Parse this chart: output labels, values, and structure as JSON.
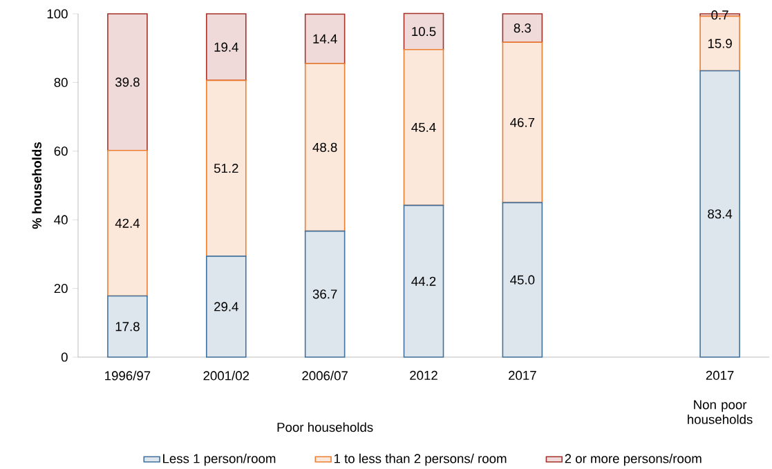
{
  "chart_data": {
    "type": "bar",
    "stacked": true,
    "ylabel": "% households",
    "categories": [
      "1996/97",
      "2001/02",
      "2006/07",
      "2012",
      "2017",
      null,
      "2017"
    ],
    "series": [
      {
        "name": "Less 1 person/room",
        "color": "#41719c",
        "values": [
          17.8,
          29.4,
          36.7,
          44.2,
          45.0,
          null,
          83.4
        ],
        "value_labels": [
          "17.8",
          "29.4",
          "36.7",
          "44.2",
          "45.0",
          null,
          "83.4"
        ]
      },
      {
        "name": "1 to less than 2 persons/ room",
        "color": "#ed7d31",
        "values": [
          42.4,
          51.2,
          48.8,
          45.4,
          46.7,
          null,
          15.9
        ],
        "value_labels": [
          "42.4",
          "51.2",
          "48.8",
          "45.4",
          "46.7",
          null,
          "15.9"
        ]
      },
      {
        "name": "2 or more persons/room",
        "color": "#a5312b",
        "values": [
          39.8,
          19.4,
          14.4,
          10.5,
          8.3,
          null,
          0.7
        ],
        "value_labels": [
          "39.8",
          "19.4",
          "14.4",
          "10.5",
          "8.3",
          null,
          "0.7"
        ]
      }
    ],
    "ylim": [
      0,
      100
    ],
    "yticks": [
      0,
      20,
      40,
      60,
      80,
      100
    ],
    "grid": false,
    "legend": "bottom",
    "annotations": [
      "Poor households",
      "Non poor households"
    ]
  }
}
